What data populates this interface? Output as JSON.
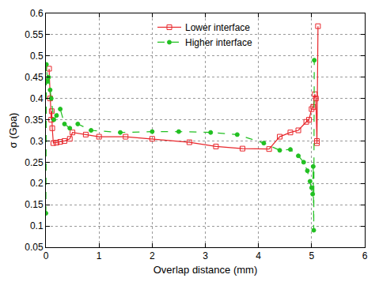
{
  "chart_data": {
    "type": "line",
    "x_label": "Overlap distance (mm)",
    "y_label": "σ (Gpa)",
    "xlim": [
      0,
      6
    ],
    "xticks": [
      0,
      1,
      2,
      3,
      4,
      5,
      6
    ],
    "ylim": [
      0.05,
      0.6
    ],
    "yticks": [
      0.05,
      0.1,
      0.15,
      0.2,
      0.25,
      0.3,
      0.35,
      0.4,
      0.45,
      0.5,
      0.55,
      0.6
    ],
    "grid": true,
    "legend": "upper center",
    "series": [
      {
        "name": "Lower interface",
        "color": "#e8262b",
        "marker": "square-open",
        "line_style": "solid",
        "x": [
          0.06,
          0.08,
          0.1,
          0.11,
          0.12,
          0.14,
          0.2,
          0.27,
          0.35,
          0.45,
          0.5,
          0.75,
          1.0,
          1.5,
          2.0,
          2.7,
          3.2,
          3.7,
          4.2,
          4.4,
          4.6,
          4.75,
          4.9,
          4.95,
          5.0,
          5.03,
          5.06,
          5.08,
          5.1,
          5.1,
          5.12
        ],
        "values": [
          0.47,
          0.4,
          0.35,
          0.37,
          0.33,
          0.295,
          0.296,
          0.298,
          0.3,
          0.305,
          0.32,
          0.315,
          0.31,
          0.31,
          0.305,
          0.297,
          0.287,
          0.282,
          0.281,
          0.31,
          0.32,
          0.325,
          0.345,
          0.35,
          0.375,
          0.38,
          0.41,
          0.4,
          0.3,
          0.295,
          0.57
        ]
      },
      {
        "name": "Higher interface",
        "color": "#22c022",
        "marker": "circle",
        "line_style": "dash",
        "x": [
          0,
          0.01,
          0.03,
          0.05,
          0.08,
          0.1,
          0.15,
          0.2,
          0.27,
          0.35,
          0.45,
          0.6,
          0.85,
          1.4,
          2.0,
          2.5,
          3.1,
          3.6,
          4.1,
          4.4,
          4.6,
          4.75,
          4.85,
          4.92,
          4.97,
          5.0,
          5.02,
          5.03,
          5.04,
          5.05
        ],
        "values": [
          0.13,
          0.48,
          0.44,
          0.45,
          0.42,
          0.4,
          0.35,
          0.36,
          0.375,
          0.34,
          0.33,
          0.34,
          0.325,
          0.32,
          0.322,
          0.322,
          0.32,
          0.315,
          0.295,
          0.278,
          0.28,
          0.265,
          0.25,
          0.23,
          0.205,
          0.19,
          0.175,
          0.24,
          0.09,
          0.49
        ]
      }
    ]
  }
}
